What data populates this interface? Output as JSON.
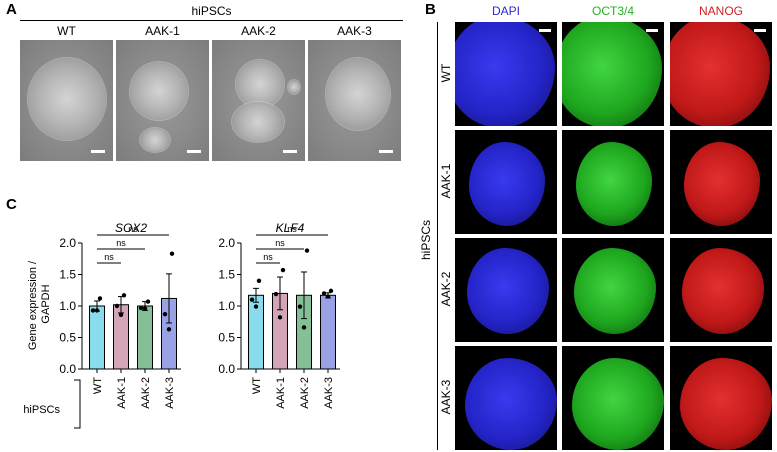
{
  "panel_a": {
    "letter": "A",
    "header": "hiPSCs",
    "images": [
      {
        "label": "WT"
      },
      {
        "label": "AAK-1"
      },
      {
        "label": "AAK-2"
      },
      {
        "label": "AAK-3"
      }
    ]
  },
  "panel_b": {
    "letter": "B",
    "columns": [
      "DAPI",
      "OCT3/4",
      "NANOG"
    ],
    "column_colors": [
      "#2b2bd6",
      "#1fb31f",
      "#d01f1f"
    ],
    "rows": [
      "WT",
      "AAK-1",
      "AAK-2",
      "AAK-3"
    ],
    "group_label": "hiPSCs"
  },
  "panel_c": {
    "letter": "C",
    "ylabel": "Gene expression /\nGAPDH",
    "x_group_label": "hiPSCs"
  },
  "chart_data": [
    {
      "type": "bar",
      "title": "SOX2",
      "categories": [
        "WT",
        "AAK-1",
        "AAK-2",
        "AAK-3"
      ],
      "values": [
        1.0,
        1.02,
        1.0,
        1.12
      ],
      "sem": [
        0.08,
        0.13,
        0.07,
        0.39
      ],
      "points": [
        [
          1.12,
          0.93,
          0.93
        ],
        [
          1.17,
          1.0,
          0.86
        ],
        [
          1.07,
          0.97,
          0.96
        ],
        [
          1.83,
          0.87,
          0.63
        ]
      ],
      "colors": [
        "#89dbee",
        "#d4a4b8",
        "#84bf95",
        "#9aa2e6"
      ],
      "ylim": [
        0,
        2.0
      ],
      "yticks": [
        "0.0",
        "0.5",
        "1.0",
        "1.5",
        "2.0"
      ],
      "ns_label": "ns",
      "comparisons": [
        [
          "WT",
          "AAK-1"
        ],
        [
          "WT",
          "AAK-2"
        ],
        [
          "WT",
          "AAK-3"
        ]
      ],
      "grid": false
    },
    {
      "type": "bar",
      "title": "KLF4",
      "categories": [
        "WT",
        "AAK-1",
        "AAK-2",
        "AAK-3"
      ],
      "values": [
        1.17,
        1.2,
        1.17,
        1.17
      ],
      "sem": [
        0.11,
        0.26,
        0.37,
        0.04
      ],
      "points": [
        [
          1.4,
          1.1,
          0.99
        ],
        [
          1.57,
          1.19,
          0.82
        ],
        [
          1.88,
          0.99,
          0.66
        ],
        [
          1.24,
          1.2,
          1.15
        ]
      ],
      "colors": [
        "#89dbee",
        "#d4a4b8",
        "#84bf95",
        "#9aa2e6"
      ],
      "ylim": [
        0,
        2.0
      ],
      "yticks": [
        "0.0",
        "0.5",
        "1.0",
        "1.5",
        "2.0"
      ],
      "ns_label": "ns",
      "comparisons": [
        [
          "WT",
          "AAK-1"
        ],
        [
          "WT",
          "AAK-2"
        ],
        [
          "WT",
          "AAK-3"
        ]
      ],
      "grid": false
    }
  ]
}
